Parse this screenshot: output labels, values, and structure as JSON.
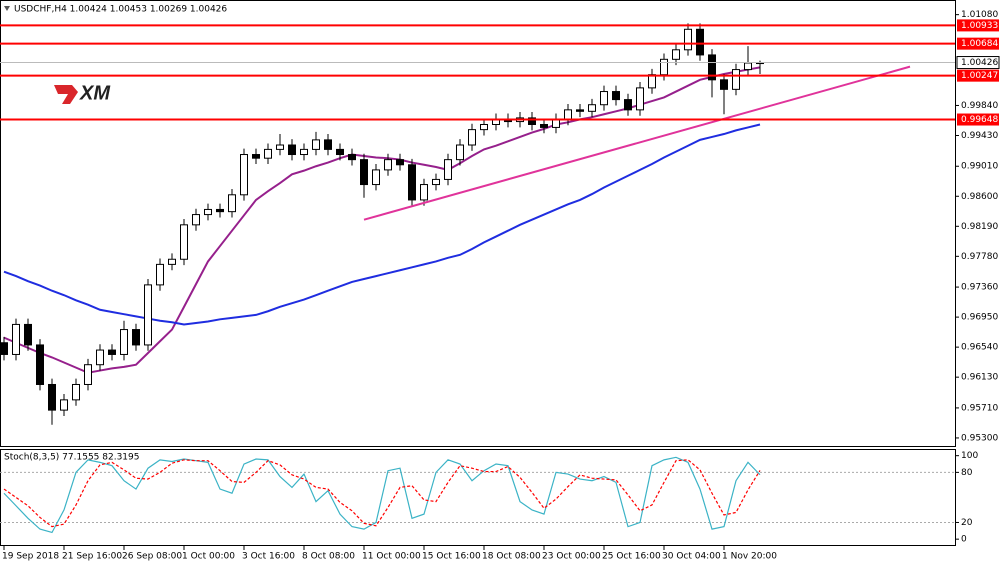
{
  "logo": "XM",
  "chart_data": [
    {
      "type": "candlestick",
      "title": "USDCHF,H4 1.00424 1.00453 1.00269 1.00426",
      "categories": [
        "19 Sep 2018",
        null,
        null,
        null,
        null,
        "21 Sep 16:00",
        null,
        null,
        null,
        null,
        "26 Sep 08:00",
        null,
        null,
        null,
        null,
        "1 Oct 00:00",
        null,
        null,
        null,
        null,
        "3 Oct 16:00",
        null,
        null,
        null,
        null,
        "8 Oct 08:00",
        null,
        null,
        null,
        null,
        "11 Oct 00:00",
        null,
        null,
        null,
        null,
        "15 Oct 16:00",
        null,
        null,
        null,
        null,
        "18 Oct 08:00",
        null,
        null,
        null,
        null,
        "23 Oct 00:00",
        null,
        null,
        null,
        null,
        "25 Oct 16:00",
        null,
        null,
        null,
        null,
        "30 Oct 04:00",
        null,
        null,
        null,
        null,
        "1 Nov 20:00",
        null,
        null,
        null
      ],
      "open": [
        0.966,
        0.9644,
        0.9685,
        0.9657,
        0.9603,
        0.9568,
        0.9582,
        0.9603,
        0.963,
        0.965,
        0.9644,
        0.9678,
        0.9657,
        0.9739,
        0.9767,
        0.9774,
        0.9821,
        0.9835,
        0.9842,
        0.9839,
        0.9862,
        0.9917,
        0.9912,
        0.9924,
        0.993,
        0.9917,
        0.9924,
        0.9937,
        0.9924,
        0.9917,
        0.991,
        0.9876,
        0.9896,
        0.991,
        0.9903,
        0.9855,
        0.9876,
        0.9883,
        0.991,
        0.993,
        0.9951,
        0.9958,
        0.9965,
        0.9962,
        0.9967,
        0.9958,
        0.9954,
        0.9965,
        0.9978,
        0.9976,
        0.9985,
        1.0003,
        0.9992,
        0.9978,
        1.0008,
        1.0026,
        1.0047,
        1.006,
        1.0088,
        1.0053,
        1.0019,
        1.0006,
        1.0033,
        1.00424
      ],
      "high": [
        0.9668,
        0.9693,
        0.9693,
        0.9665,
        0.9611,
        0.959,
        0.9611,
        0.9638,
        0.9658,
        0.9658,
        0.969,
        0.9686,
        0.9747,
        0.9775,
        0.9782,
        0.9829,
        0.9843,
        0.985,
        0.985,
        0.987,
        0.9925,
        0.9925,
        0.9932,
        0.9945,
        0.9938,
        0.9932,
        0.9948,
        0.9945,
        0.9932,
        0.9925,
        0.9918,
        0.9904,
        0.9918,
        0.9918,
        0.9911,
        0.9884,
        0.9891,
        0.9918,
        0.9938,
        0.9959,
        0.9966,
        0.9973,
        0.9973,
        0.9975,
        0.9975,
        0.9966,
        0.9973,
        0.9986,
        0.9986,
        0.9993,
        1.0011,
        1.0011,
        1.0,
        1.0016,
        1.0034,
        1.0055,
        1.0068,
        1.0096,
        1.0096,
        1.0061,
        1.0027,
        1.0041,
        1.0065,
        1.00453
      ],
      "low": [
        0.9636,
        0.9636,
        0.9649,
        0.9595,
        0.9548,
        0.956,
        0.9574,
        0.9595,
        0.9622,
        0.9636,
        0.9636,
        0.9649,
        0.9649,
        0.9731,
        0.9759,
        0.9766,
        0.9813,
        0.9827,
        0.9831,
        0.9831,
        0.9854,
        0.9904,
        0.9904,
        0.9916,
        0.9909,
        0.9909,
        0.9916,
        0.9916,
        0.9909,
        0.9902,
        0.9858,
        0.9868,
        0.9888,
        0.9895,
        0.9847,
        0.9847,
        0.9868,
        0.9875,
        0.9902,
        0.9922,
        0.9943,
        0.995,
        0.9954,
        0.9954,
        0.995,
        0.9946,
        0.9946,
        0.9957,
        0.9968,
        0.9968,
        0.9977,
        0.9984,
        0.997,
        0.997,
        1.0,
        1.0018,
        1.0039,
        1.0052,
        1.0045,
        0.9995,
        0.9972,
        0.9998,
        1.0025,
        1.00269
      ],
      "close": [
        0.9644,
        0.9685,
        0.9657,
        0.9603,
        0.9568,
        0.9582,
        0.9603,
        0.963,
        0.965,
        0.9644,
        0.9678,
        0.9657,
        0.9739,
        0.9767,
        0.9774,
        0.9821,
        0.9835,
        0.9842,
        0.9839,
        0.9862,
        0.9917,
        0.9912,
        0.9924,
        0.993,
        0.9917,
        0.9924,
        0.9937,
        0.9924,
        0.9917,
        0.991,
        0.9876,
        0.9896,
        0.991,
        0.9903,
        0.9855,
        0.9876,
        0.9883,
        0.991,
        0.993,
        0.9951,
        0.9958,
        0.9965,
        0.9962,
        0.9967,
        0.9958,
        0.9954,
        0.9965,
        0.9978,
        0.9976,
        0.9985,
        1.0003,
        0.9992,
        0.9978,
        1.0008,
        1.0026,
        1.0047,
        1.006,
        1.0088,
        1.0053,
        1.0019,
        1.0006,
        1.0033,
        1.0042,
        1.00426
      ],
      "up_color": "#ffffff",
      "down_color": "#000000",
      "wick_color": "#000000",
      "series": [
        {
          "color": "#96208c",
          "values": [
            0.9667,
            0.966,
            0.9653,
            0.9646,
            0.964,
            0.9633,
            0.9626,
            0.9619,
            0.9622,
            0.9625,
            0.9627,
            0.963,
            0.9646,
            0.9662,
            0.9678,
            0.9709,
            0.974,
            0.9771,
            0.9792,
            0.9813,
            0.9834,
            0.9855,
            0.9867,
            0.9878,
            0.989,
            0.9895,
            0.9901,
            0.9906,
            0.9912,
            0.9917,
            0.9915,
            0.9913,
            0.9912,
            0.991,
            0.9906,
            0.9903,
            0.99,
            0.9896,
            0.9905,
            0.9915,
            0.9924,
            0.9929,
            0.9935,
            0.9941,
            0.9947,
            0.9952,
            0.9958,
            0.9961,
            0.9965,
            0.9968,
            0.9972,
            0.9976,
            0.998,
            0.9985,
            0.999,
            0.9995,
            1.0003,
            1.0011,
            1.0019,
            1.0023,
            1.0027,
            1.003,
            1.0033,
            1.0036
          ]
        },
        {
          "color": "#1f2de0",
          "values": [
            0.9757,
            0.9751,
            0.9744,
            0.9738,
            0.9731,
            0.9725,
            0.9718,
            0.9712,
            0.9705,
            0.9702,
            0.9699,
            0.9696,
            0.9693,
            0.969,
            0.9688,
            0.9685,
            0.9687,
            0.9689,
            0.9692,
            0.9694,
            0.9696,
            0.9698,
            0.9703,
            0.9709,
            0.9714,
            0.9719,
            0.9725,
            0.9731,
            0.9737,
            0.9743,
            0.9747,
            0.9751,
            0.9755,
            0.9759,
            0.9763,
            0.9767,
            0.9771,
            0.9776,
            0.978,
            0.9788,
            0.9797,
            0.9805,
            0.9813,
            0.9821,
            0.9828,
            0.9835,
            0.9842,
            0.9849,
            0.9855,
            0.9863,
            0.9872,
            0.988,
            0.9888,
            0.9896,
            0.9904,
            0.9913,
            0.9921,
            0.9929,
            0.9937,
            0.9941,
            0.9945,
            0.995,
            0.9954,
            0.9958
          ]
        }
      ],
      "trendline": {
        "color": "#e0339a",
        "x": [
          30,
          75.5
        ],
        "y": [
          0.9828,
          1.0037
        ]
      },
      "levels": [
        {
          "value": 1.00933,
          "color": "#ff0000"
        },
        {
          "value": 1.00684,
          "color": "#ff0000"
        },
        {
          "value": 1.00247,
          "color": "#ff0000"
        },
        {
          "value": 0.99648,
          "color": "#ff0000"
        }
      ],
      "ylim": [
        0.9519,
        1.0128
      ],
      "yticks": [
        {
          "value": 1.0108,
          "label": "1.01080"
        },
        {
          "value": 0.9984,
          "label": "0.99840"
        },
        {
          "value": 0.9943,
          "label": "0.99430"
        },
        {
          "value": 0.9901,
          "label": "0.99010"
        },
        {
          "value": 0.986,
          "label": "0.98600"
        },
        {
          "value": 0.9819,
          "label": "0.98190"
        },
        {
          "value": 0.9778,
          "label": "0.97780"
        },
        {
          "value": 0.9736,
          "label": "0.97360"
        },
        {
          "value": 0.9695,
          "label": "0.96950"
        },
        {
          "value": 0.9654,
          "label": "0.96540"
        },
        {
          "value": 0.9613,
          "label": "0.96130"
        },
        {
          "value": 0.9571,
          "label": "0.95710"
        },
        {
          "value": 0.953,
          "label": "0.95300"
        }
      ]
    },
    {
      "type": "line",
      "title": "Stoch(8,3,5) 77.1555 82.3195",
      "series": [
        {
          "color": "#3bb3c6",
          "values": [
            55,
            40,
            25,
            12,
            8,
            35,
            80,
            95,
            92,
            88,
            70,
            60,
            85,
            95,
            93,
            96,
            94,
            92,
            60,
            55,
            90,
            96,
            95,
            75,
            62,
            78,
            45,
            58,
            30,
            15,
            12,
            20,
            82,
            85,
            25,
            30,
            80,
            95,
            90,
            70,
            82,
            90,
            88,
            45,
            35,
            30,
            80,
            78,
            72,
            70,
            75,
            68,
            15,
            20,
            88,
            95,
            98,
            92,
            60,
            12,
            15,
            70,
            92,
            77.1555
          ]
        },
        {
          "color": "#ff0000",
          "dashed": true,
          "values": [
            60,
            50,
            40,
            26,
            15,
            18,
            41,
            70,
            89,
            92,
            83,
            73,
            72,
            80,
            91,
            95,
            94,
            94,
            82,
            69,
            68,
            80,
            94,
            89,
            77,
            72,
            62,
            60,
            44,
            34,
            19,
            16,
            38,
            62,
            64,
            47,
            45,
            68,
            88,
            85,
            81,
            81,
            87,
            74,
            56,
            37,
            48,
            63,
            77,
            73,
            72,
            71,
            53,
            34,
            41,
            68,
            94,
            95,
            83,
            55,
            29,
            32,
            59,
            82.3195
          ]
        }
      ],
      "levels": [
        20,
        80
      ],
      "ylim": [
        -7,
        108
      ],
      "yticks": [
        0,
        20,
        80,
        100
      ]
    }
  ]
}
